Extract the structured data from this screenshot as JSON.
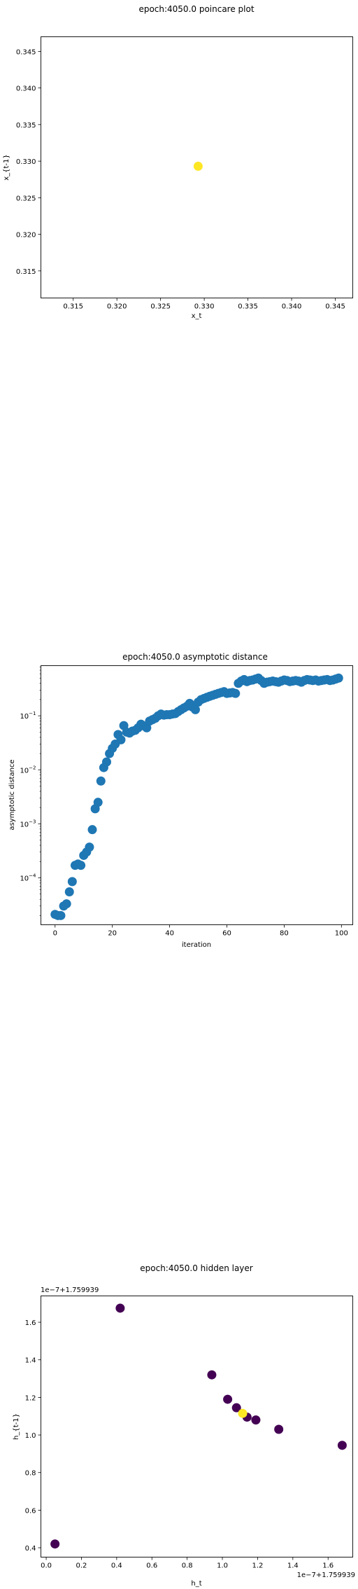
{
  "chart_data": [
    {
      "type": "scatter",
      "title": "epoch:4050.0 poincare plot",
      "xlabel": "x_t",
      "ylabel": "x_{t-1}",
      "xlim": [
        0.3113,
        0.347
      ],
      "ylim": [
        0.3113,
        0.347
      ],
      "xticks": [
        0.315,
        0.32,
        0.325,
        0.33,
        0.335,
        0.34,
        0.345
      ],
      "xtick_labels": [
        "0.315",
        "0.320",
        "0.325",
        "0.330",
        "0.335",
        "0.340",
        "0.345"
      ],
      "yticks": [
        0.315,
        0.32,
        0.325,
        0.33,
        0.335,
        0.34,
        0.345
      ],
      "ytick_labels": [
        "0.315",
        "0.320",
        "0.325",
        "0.330",
        "0.335",
        "0.340",
        "0.345"
      ],
      "grid": false,
      "points": [
        {
          "x": 0.3293,
          "y": 0.3293,
          "color": "#fde725"
        }
      ]
    },
    {
      "type": "scatter",
      "title": "epoch:4050.0 asymptotic distance",
      "xlabel": "iteration",
      "ylabel": "asymptotic distance",
      "yscale": "log",
      "xlim": [
        -4.95,
        103.95
      ],
      "ylim": [
        1.35e-05,
        0.85
      ],
      "xticks": [
        0,
        20,
        40,
        60,
        80,
        100
      ],
      "xtick_labels": [
        "0",
        "20",
        "40",
        "60",
        "80",
        "100"
      ],
      "yticks": [
        0.0001,
        0.001,
        0.01,
        0.1
      ],
      "ytick_labels": [
        [
          "10",
          "−4"
        ],
        [
          "10",
          "−3"
        ],
        [
          "10",
          "−2"
        ],
        [
          "10",
          "−1"
        ]
      ],
      "grid": false,
      "color": "#1f77b4",
      "x": [
        0,
        1,
        2,
        3,
        4,
        5,
        6,
        7,
        8,
        9,
        10,
        11,
        12,
        13,
        14,
        15,
        16,
        17,
        18,
        19,
        20,
        21,
        22,
        23,
        24,
        25,
        26,
        27,
        28,
        29,
        30,
        31,
        32,
        33,
        34,
        35,
        36,
        37,
        38,
        39,
        40,
        41,
        42,
        43,
        44,
        45,
        46,
        47,
        48,
        49,
        50,
        51,
        52,
        53,
        54,
        55,
        56,
        57,
        58,
        59,
        60,
        61,
        62,
        63,
        64,
        65,
        66,
        67,
        68,
        69,
        70,
        71,
        72,
        73,
        74,
        75,
        76,
        77,
        78,
        79,
        80,
        81,
        82,
        83,
        84,
        85,
        86,
        87,
        88,
        89,
        90,
        91,
        92,
        93,
        94,
        95,
        96,
        97,
        98,
        99
      ],
      "y": [
        2.1e-05,
        2e-05,
        2e-05,
        3e-05,
        3.3e-05,
        5.5e-05,
        8.5e-05,
        0.00017,
        0.00018,
        0.00017,
        0.00026,
        0.0003,
        0.00037,
        0.00078,
        0.0019,
        0.0025,
        0.0062,
        0.011,
        0.014,
        0.02,
        0.025,
        0.03,
        0.045,
        0.036,
        0.066,
        0.05,
        0.048,
        0.052,
        0.054,
        0.06,
        0.07,
        0.065,
        0.06,
        0.08,
        0.085,
        0.09,
        0.1,
        0.108,
        0.103,
        0.105,
        0.105,
        0.108,
        0.11,
        0.12,
        0.13,
        0.14,
        0.15,
        0.17,
        0.145,
        0.13,
        0.18,
        0.2,
        0.21,
        0.22,
        0.23,
        0.24,
        0.25,
        0.26,
        0.27,
        0.28,
        0.26,
        0.265,
        0.27,
        0.26,
        0.4,
        0.44,
        0.47,
        0.43,
        0.45,
        0.46,
        0.48,
        0.5,
        0.45,
        0.4,
        0.42,
        0.43,
        0.44,
        0.43,
        0.42,
        0.44,
        0.46,
        0.45,
        0.43,
        0.44,
        0.45,
        0.44,
        0.42,
        0.45,
        0.47,
        0.46,
        0.45,
        0.46,
        0.44,
        0.45,
        0.46,
        0.47,
        0.45,
        0.46,
        0.48,
        0.5
      ]
    },
    {
      "type": "scatter",
      "title": "epoch:4050.0 hidden layer",
      "xlabel": "h_t",
      "ylabel": "h_{t-1}",
      "offset_label": "1e−7+1.759939",
      "xlim": [
        -0.03,
        1.74
      ],
      "ylim": [
        0.35,
        1.74
      ],
      "xticks": [
        0.0,
        0.2,
        0.4,
        0.6,
        0.8,
        1.0,
        1.2,
        1.4,
        1.6
      ],
      "xtick_labels": [
        "0.0",
        "0.2",
        "0.4",
        "0.6",
        "0.8",
        "1.0",
        "1.2",
        "1.4",
        "1.6"
      ],
      "yticks": [
        0.4,
        0.6,
        0.8,
        1.0,
        1.2,
        1.4,
        1.6
      ],
      "ytick_labels": [
        "0.4",
        "0.6",
        "0.8",
        "1.0",
        "1.2",
        "1.4",
        "1.6"
      ],
      "grid": false,
      "points": [
        {
          "x": 0.05,
          "y": 0.42,
          "color": "#440154"
        },
        {
          "x": 0.42,
          "y": 1.675,
          "color": "#440154"
        },
        {
          "x": 0.94,
          "y": 1.32,
          "color": "#440154"
        },
        {
          "x": 1.03,
          "y": 1.19,
          "color": "#440154"
        },
        {
          "x": 1.08,
          "y": 1.145,
          "color": "#440154"
        },
        {
          "x": 1.14,
          "y": 1.095,
          "color": "#440154"
        },
        {
          "x": 1.19,
          "y": 1.08,
          "color": "#440154"
        },
        {
          "x": 1.32,
          "y": 1.03,
          "color": "#440154"
        },
        {
          "x": 1.68,
          "y": 0.945,
          "color": "#440154"
        },
        {
          "x": 1.115,
          "y": 1.115,
          "color": "#fde725"
        }
      ]
    }
  ]
}
